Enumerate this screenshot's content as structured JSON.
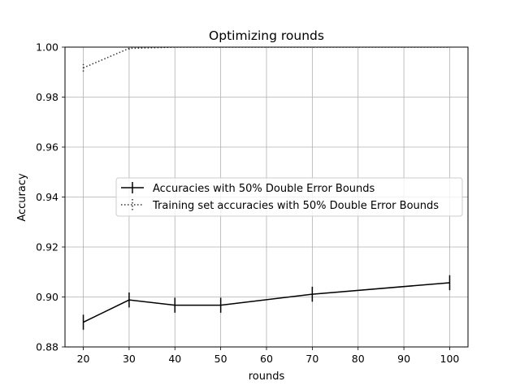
{
  "chart_data": {
    "type": "line",
    "title": "Optimizing rounds",
    "xlabel": "rounds",
    "ylabel": "Accuracy",
    "xlim": [
      16,
      104
    ],
    "ylim": [
      0.88,
      1.0
    ],
    "xticks": [
      "20",
      "30",
      "40",
      "50",
      "60",
      "70",
      "80",
      "90",
      "100"
    ],
    "yticks": [
      "0.88",
      "0.90",
      "0.92",
      "0.94",
      "0.96",
      "0.98",
      "1.00"
    ],
    "grid": true,
    "legend_position": "center-right",
    "series": [
      {
        "name": "Accuracies with 50% Double Error Bounds",
        "style": "solid",
        "color": "#000000",
        "x": [
          20,
          30,
          40,
          50,
          70,
          100
        ],
        "y": [
          0.8899,
          0.8988,
          0.8967,
          0.8967,
          0.9011,
          0.9057
        ],
        "yerr": [
          0.003,
          0.003,
          0.003,
          0.003,
          0.003,
          0.003
        ]
      },
      {
        "name": "Training set accuracies with 50% Double Error Bounds",
        "style": "dotted",
        "color": "#333333",
        "x": [
          20,
          30,
          40,
          50,
          70,
          100
        ],
        "y": [
          0.9917,
          0.9995,
          1.0,
          1.0,
          1.0,
          1.0
        ],
        "yerr": [
          0.0015,
          0.0005,
          0.0,
          0.0,
          0.0,
          0.0
        ]
      }
    ]
  }
}
